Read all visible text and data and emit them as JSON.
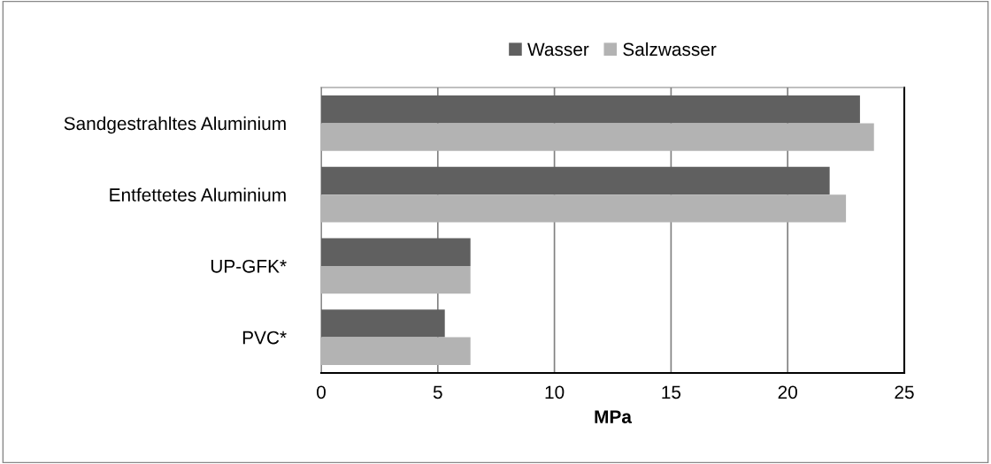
{
  "chart_data": {
    "type": "bar",
    "orientation": "horizontal",
    "xlabel": "MPa",
    "categories": [
      "Sandgestrahltes Aluminium",
      "Entfettetes Aluminium",
      "UP-GFK*",
      "PVC*"
    ],
    "series": [
      {
        "name": "Wasser",
        "color": "#606060",
        "values": [
          23.1,
          21.8,
          6.4,
          5.3
        ]
      },
      {
        "name": "Salzwasser",
        "color": "#b3b3b3",
        "values": [
          23.7,
          22.5,
          6.4,
          6.4
        ]
      }
    ],
    "xlim": [
      0,
      25
    ],
    "xticks": [
      0,
      5,
      10,
      15,
      20,
      25
    ],
    "grid": "x",
    "legend": "top"
  }
}
